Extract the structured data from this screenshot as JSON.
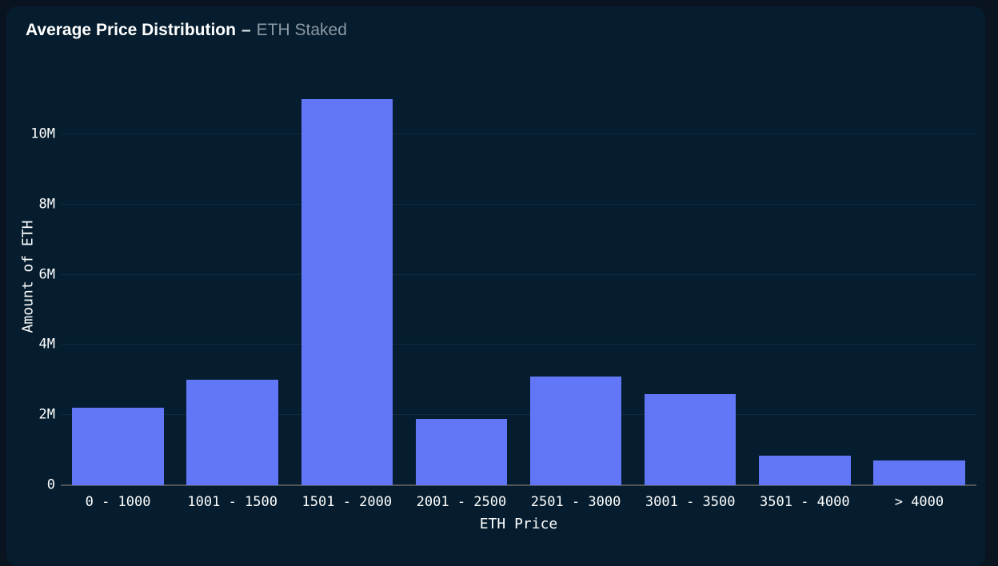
{
  "header": {
    "title": "Average Price Distribution",
    "separator": "–",
    "subtitle": "ETH Staked"
  },
  "chart_data": {
    "type": "bar",
    "title": "Average Price Distribution – ETH Staked",
    "categories": [
      "0 - 1000",
      "1001 - 1500",
      "1501 - 2000",
      "2001 - 2500",
      "2501 - 3000",
      "3001 - 3500",
      "3501 - 4000",
      "> 4000"
    ],
    "values": [
      2200000,
      3000000,
      11000000,
      1900000,
      3100000,
      2600000,
      850000,
      700000
    ],
    "xlabel": "ETH Price",
    "ylabel": "Amount of ETH",
    "ylim": [
      0,
      11550000
    ],
    "yticks": [
      {
        "value": 0,
        "label": "0"
      },
      {
        "value": 2000000,
        "label": "2M"
      },
      {
        "value": 4000000,
        "label": "4M"
      },
      {
        "value": 6000000,
        "label": "6M"
      },
      {
        "value": 8000000,
        "label": "8M"
      },
      {
        "value": 10000000,
        "label": "10M"
      }
    ],
    "grid": "horizontal",
    "legend": false,
    "colors": {
      "bar": "#6277f8",
      "card_background": "#051d2e",
      "page_background": "#0a1420",
      "gridline": "#0d2c40",
      "axis_line": "#50565a",
      "tick_text": "#ffffff",
      "title_text": "#ffffff",
      "subtitle_text": "#8b98a5"
    }
  }
}
